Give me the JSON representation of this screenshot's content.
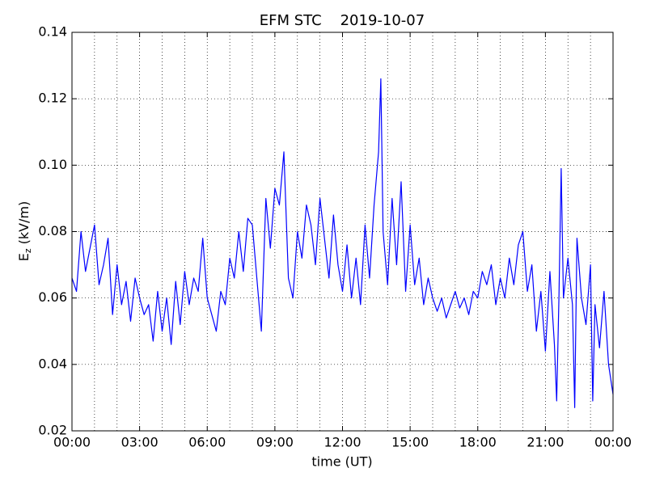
{
  "chart_data": {
    "type": "line",
    "title": "EFM STC    2019-10-07",
    "xlabel": "time (UT)",
    "ylabel": {
      "text": "E",
      "subscript": "z",
      "suffix": "(kV/m)"
    },
    "x": [
      0.0,
      0.2,
      0.4,
      0.6,
      0.8,
      1.0,
      1.2,
      1.4,
      1.6,
      1.8,
      2.0,
      2.2,
      2.4,
      2.6,
      2.8,
      3.0,
      3.2,
      3.4,
      3.6,
      3.8,
      4.0,
      4.2,
      4.4,
      4.6,
      4.8,
      5.0,
      5.2,
      5.4,
      5.6,
      5.8,
      6.0,
      6.2,
      6.4,
      6.6,
      6.8,
      7.0,
      7.2,
      7.4,
      7.6,
      7.8,
      8.0,
      8.2,
      8.4,
      8.6,
      8.8,
      9.0,
      9.2,
      9.4,
      9.6,
      9.8,
      10.0,
      10.2,
      10.4,
      10.6,
      10.8,
      11.0,
      11.2,
      11.4,
      11.6,
      11.8,
      12.0,
      12.2,
      12.4,
      12.6,
      12.8,
      13.0,
      13.2,
      13.4,
      13.6,
      13.7,
      13.8,
      14.0,
      14.2,
      14.4,
      14.6,
      14.8,
      15.0,
      15.2,
      15.4,
      15.6,
      15.8,
      16.0,
      16.2,
      16.4,
      16.6,
      16.8,
      17.0,
      17.2,
      17.4,
      17.6,
      17.8,
      18.0,
      18.2,
      18.4,
      18.6,
      18.8,
      19.0,
      19.2,
      19.4,
      19.6,
      19.8,
      20.0,
      20.2,
      20.4,
      20.6,
      20.8,
      21.0,
      21.2,
      21.4,
      21.5,
      21.6,
      21.7,
      21.8,
      22.0,
      22.2,
      22.3,
      22.4,
      22.6,
      22.8,
      23.0,
      23.1,
      23.2,
      23.4,
      23.6,
      23.8,
      24.0
    ],
    "series": [
      {
        "name": "Ez",
        "color": "#0000ff",
        "values": [
          0.066,
          0.062,
          0.08,
          0.068,
          0.075,
          0.082,
          0.064,
          0.07,
          0.078,
          0.055,
          0.07,
          0.058,
          0.065,
          0.053,
          0.066,
          0.06,
          0.055,
          0.058,
          0.047,
          0.062,
          0.05,
          0.06,
          0.046,
          0.065,
          0.052,
          0.068,
          0.058,
          0.066,
          0.062,
          0.078,
          0.06,
          0.055,
          0.05,
          0.062,
          0.058,
          0.072,
          0.066,
          0.08,
          0.068,
          0.084,
          0.082,
          0.066,
          0.05,
          0.09,
          0.075,
          0.093,
          0.088,
          0.104,
          0.066,
          0.06,
          0.08,
          0.072,
          0.088,
          0.082,
          0.07,
          0.09,
          0.078,
          0.066,
          0.085,
          0.07,
          0.062,
          0.076,
          0.06,
          0.072,
          0.058,
          0.082,
          0.066,
          0.088,
          0.104,
          0.126,
          0.08,
          0.064,
          0.09,
          0.07,
          0.095,
          0.062,
          0.082,
          0.064,
          0.072,
          0.058,
          0.066,
          0.06,
          0.056,
          0.06,
          0.054,
          0.058,
          0.062,
          0.057,
          0.06,
          0.055,
          0.062,
          0.06,
          0.068,
          0.064,
          0.07,
          0.058,
          0.066,
          0.06,
          0.072,
          0.064,
          0.076,
          0.08,
          0.062,
          0.07,
          0.05,
          0.062,
          0.044,
          0.068,
          0.046,
          0.029,
          0.06,
          0.099,
          0.06,
          0.072,
          0.058,
          0.027,
          0.078,
          0.06,
          0.052,
          0.07,
          0.029,
          0.058,
          0.045,
          0.062,
          0.04,
          0.031
        ]
      }
    ],
    "xlim": [
      0,
      24
    ],
    "xticks": [
      {
        "value": 0,
        "label": "00:00"
      },
      {
        "value": 3,
        "label": "03:00"
      },
      {
        "value": 6,
        "label": "06:00"
      },
      {
        "value": 9,
        "label": "09:00"
      },
      {
        "value": 12,
        "label": "12:00"
      },
      {
        "value": 15,
        "label": "15:00"
      },
      {
        "value": 18,
        "label": "18:00"
      },
      {
        "value": 21,
        "label": "21:00"
      },
      {
        "value": 24,
        "label": "00:00"
      }
    ],
    "x_grid_lines": [
      1,
      2,
      3,
      4,
      5,
      6,
      7,
      8,
      9,
      10,
      11,
      12,
      13,
      14,
      15,
      16,
      17,
      18,
      19,
      20,
      21,
      22,
      23
    ],
    "ylim": [
      0.02,
      0.14
    ],
    "yticks": [
      {
        "value": 0.02,
        "label": "0.02"
      },
      {
        "value": 0.04,
        "label": "0.04"
      },
      {
        "value": 0.06,
        "label": "0.06"
      },
      {
        "value": 0.08,
        "label": "0.08"
      },
      {
        "value": 0.1,
        "label": "0.10"
      },
      {
        "value": 0.12,
        "label": "0.12"
      },
      {
        "value": 0.14,
        "label": "0.14"
      }
    ],
    "grid": true
  }
}
